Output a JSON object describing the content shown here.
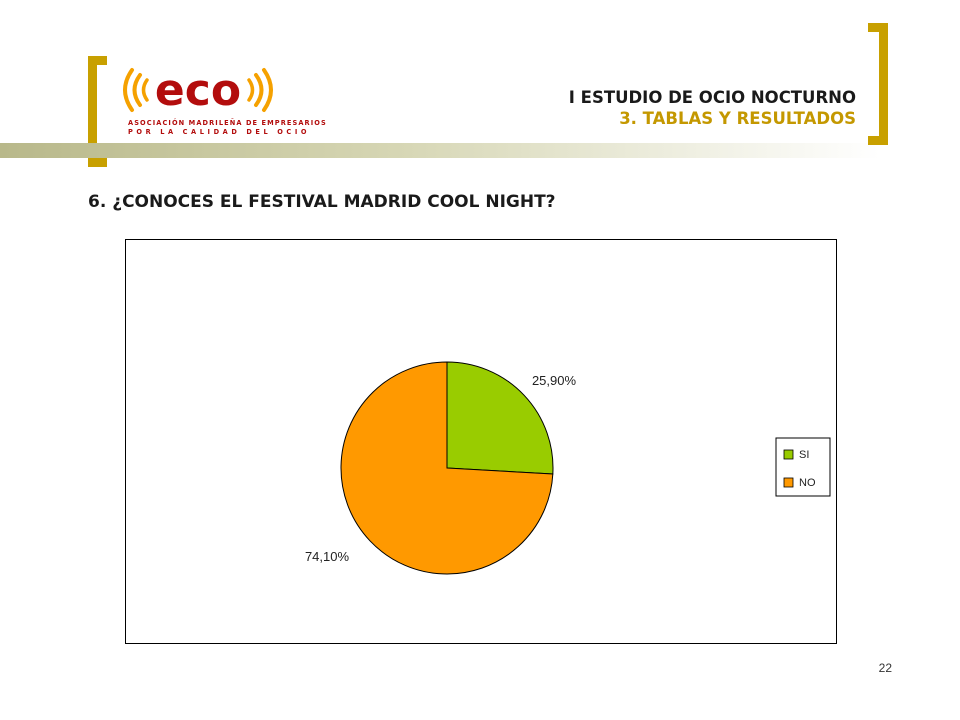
{
  "header": {
    "title": "I ESTUDIO DE OCIO NOCTURNO",
    "subtitle": "3. TABLAS Y RESULTADOS",
    "accent_color": "#c8a000"
  },
  "logo": {
    "wordmark": "eco",
    "line1": "ASOCIACIÓN MADRILEÑA DE EMPRESARIOS",
    "line2": "POR LA CALIDAD DEL OCIO",
    "orange": "#f5a100",
    "red": "#b30d0d"
  },
  "question": "6. ¿CONOCES EL FESTIVAL MADRID COOL NIGHT?",
  "chart_data": {
    "type": "pie",
    "categories": [
      "SI",
      "NO"
    ],
    "values": [
      25.9,
      74.1
    ],
    "labels": [
      "25,90%",
      "74,10%"
    ],
    "colors": [
      "#99cc00",
      "#ff9900"
    ],
    "legend": "right"
  },
  "page_number": "22"
}
